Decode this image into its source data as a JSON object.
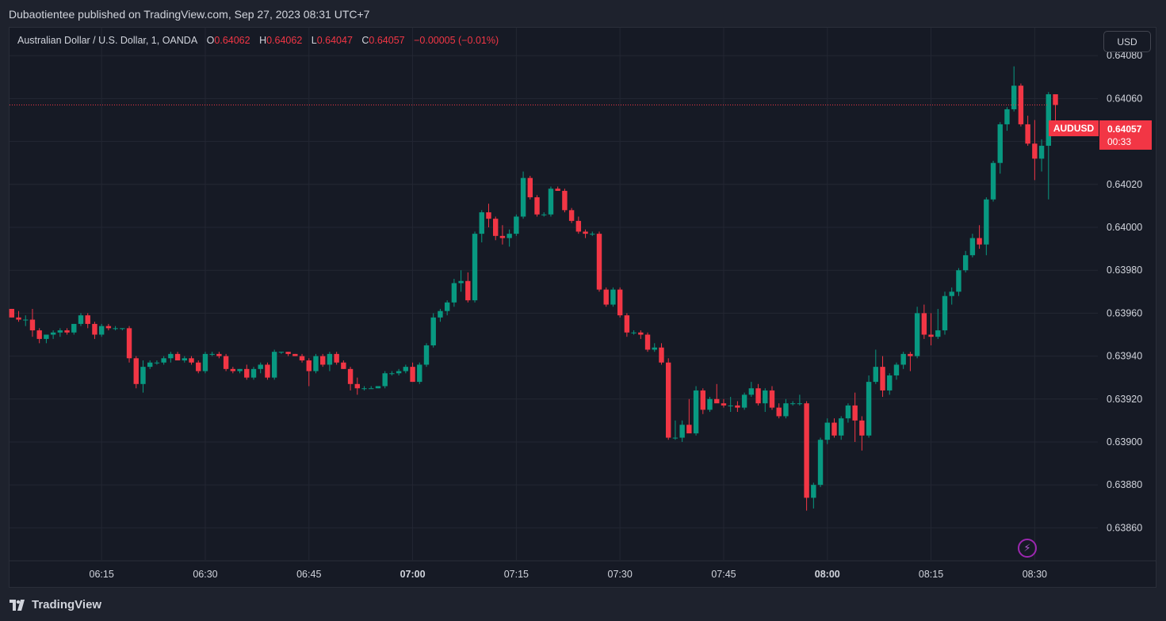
{
  "header": {
    "publisher": "Dubaotientee published on TradingView.com, Sep 27, 2023 08:31 UTC+7"
  },
  "legend": {
    "symbol_desc": "Australian Dollar / U.S. Dollar, 1, OANDA",
    "o_label": "O",
    "o_value": "0.64062",
    "h_label": "H",
    "h_value": "0.64062",
    "l_label": "L",
    "l_value": "0.64047",
    "c_label": "C",
    "c_value": "0.64057",
    "change": "−0.00005 (−0.01%)"
  },
  "currency_button": "USD",
  "last_price": {
    "symbol": "AUDUSD",
    "price": "0.64057",
    "countdown": "00:33"
  },
  "brand": "TradingView",
  "colors": {
    "up": "#089981",
    "down": "#f23645",
    "background": "#161a25",
    "grid": "#232733",
    "text": "#d1d4dc",
    "alert": "#9c27b0"
  },
  "icons": {
    "alert": "lightning-icon",
    "logo": "tradingview-logo-icon"
  },
  "chart_data": {
    "type": "candlestick",
    "ylim": [
      0.63845,
      0.64093
    ],
    "y_ticks": [
      "0.64080",
      "0.64060",
      "0.64040",
      "0.64020",
      "0.64000",
      "0.63980",
      "0.63960",
      "0.63940",
      "0.63920",
      "0.63900",
      "0.63880",
      "0.63860"
    ],
    "x_ticks": [
      {
        "label": "06:15",
        "t": 13,
        "bold": false
      },
      {
        "label": "06:30",
        "t": 28,
        "bold": false
      },
      {
        "label": "06:45",
        "t": 43,
        "bold": false
      },
      {
        "label": "07:00",
        "t": 58,
        "bold": true
      },
      {
        "label": "07:15",
        "t": 73,
        "bold": false
      },
      {
        "label": "07:30",
        "t": 88,
        "bold": false
      },
      {
        "label": "07:45",
        "t": 103,
        "bold": false
      },
      {
        "label": "08:00",
        "t": 118,
        "bold": true
      },
      {
        "label": "08:15",
        "t": 133,
        "bold": false
      },
      {
        "label": "08:30",
        "t": 148,
        "bold": false
      }
    ],
    "last_price": 0.64057,
    "candles": [
      [
        0.63962,
        0.63962,
        0.63958,
        0.63958
      ],
      [
        0.63958,
        0.63961,
        0.63956,
        0.63957
      ],
      [
        0.63957,
        0.63959,
        0.63954,
        0.63957
      ],
      [
        0.63957,
        0.63962,
        0.63949,
        0.63952
      ],
      [
        0.63952,
        0.63953,
        0.63946,
        0.63948
      ],
      [
        0.63948,
        0.6395,
        0.63946,
        0.6395
      ],
      [
        0.6395,
        0.63952,
        0.63948,
        0.63951
      ],
      [
        0.63951,
        0.63953,
        0.63949,
        0.63952
      ],
      [
        0.63952,
        0.63953,
        0.6395,
        0.63951
      ],
      [
        0.63951,
        0.63955,
        0.6395,
        0.63955
      ],
      [
        0.63955,
        0.6396,
        0.63954,
        0.63959
      ],
      [
        0.63959,
        0.6396,
        0.63953,
        0.63955
      ],
      [
        0.63955,
        0.63956,
        0.63948,
        0.6395
      ],
      [
        0.6395,
        0.63955,
        0.63949,
        0.63954
      ],
      [
        0.63954,
        0.63955,
        0.63952,
        0.63953
      ],
      [
        0.63953,
        0.63954,
        0.63952,
        0.63953
      ],
      [
        0.63953,
        0.63953,
        0.63952,
        0.63953
      ],
      [
        0.63953,
        0.63954,
        0.63937,
        0.63939
      ],
      [
        0.63939,
        0.6394,
        0.63925,
        0.63927
      ],
      [
        0.63927,
        0.63938,
        0.63923,
        0.63935
      ],
      [
        0.63935,
        0.63938,
        0.63934,
        0.63937
      ],
      [
        0.63937,
        0.63938,
        0.63936,
        0.63937
      ],
      [
        0.63937,
        0.6394,
        0.63936,
        0.63939
      ],
      [
        0.63939,
        0.63942,
        0.63937,
        0.63941
      ],
      [
        0.63941,
        0.63942,
        0.63938,
        0.63938
      ],
      [
        0.63938,
        0.6394,
        0.63937,
        0.63939
      ],
      [
        0.63939,
        0.6394,
        0.63936,
        0.63937
      ],
      [
        0.63937,
        0.63938,
        0.63932,
        0.63933
      ],
      [
        0.63933,
        0.63942,
        0.63932,
        0.63941
      ],
      [
        0.63941,
        0.63942,
        0.6394,
        0.63941
      ],
      [
        0.63941,
        0.63942,
        0.63939,
        0.6394
      ],
      [
        0.6394,
        0.63941,
        0.63933,
        0.63934
      ],
      [
        0.63934,
        0.63935,
        0.63932,
        0.63933
      ],
      [
        0.63933,
        0.63934,
        0.63932,
        0.63934
      ],
      [
        0.63934,
        0.63936,
        0.63929,
        0.6393
      ],
      [
        0.6393,
        0.63935,
        0.63929,
        0.63934
      ],
      [
        0.63934,
        0.63937,
        0.63932,
        0.63936
      ],
      [
        0.63936,
        0.63937,
        0.63929,
        0.6393
      ],
      [
        0.6393,
        0.63943,
        0.63929,
        0.63942
      ],
      [
        0.63942,
        0.63942,
        0.63941,
        0.63942
      ],
      [
        0.63942,
        0.63942,
        0.6394,
        0.63941
      ],
      [
        0.63941,
        0.63941,
        0.6394,
        0.6394
      ],
      [
        0.6394,
        0.63941,
        0.63937,
        0.63938
      ],
      [
        0.63938,
        0.63939,
        0.63926,
        0.63933
      ],
      [
        0.63933,
        0.63941,
        0.63932,
        0.6394
      ],
      [
        0.6394,
        0.63941,
        0.63935,
        0.63936
      ],
      [
        0.63936,
        0.63942,
        0.63933,
        0.63941
      ],
      [
        0.63941,
        0.63942,
        0.63936,
        0.63937
      ],
      [
        0.63937,
        0.63938,
        0.63934,
        0.63934
      ],
      [
        0.63934,
        0.63935,
        0.63924,
        0.63927
      ],
      [
        0.63927,
        0.6393,
        0.63922,
        0.63925
      ],
      [
        0.63925,
        0.63926,
        0.63924,
        0.63925
      ],
      [
        0.63925,
        0.63926,
        0.63925,
        0.63925
      ],
      [
        0.63925,
        0.63926,
        0.63925,
        0.63926
      ],
      [
        0.63926,
        0.63933,
        0.63925,
        0.63932
      ],
      [
        0.63932,
        0.63933,
        0.63931,
        0.63932
      ],
      [
        0.63932,
        0.63934,
        0.63931,
        0.63933
      ],
      [
        0.63933,
        0.63936,
        0.63932,
        0.63935
      ],
      [
        0.63935,
        0.63937,
        0.63928,
        0.63928
      ],
      [
        0.63928,
        0.63937,
        0.63927,
        0.63936
      ],
      [
        0.63936,
        0.63946,
        0.63935,
        0.63945
      ],
      [
        0.63945,
        0.6396,
        0.63944,
        0.63958
      ],
      [
        0.63958,
        0.63962,
        0.63956,
        0.63961
      ],
      [
        0.63961,
        0.63966,
        0.63959,
        0.63965
      ],
      [
        0.63965,
        0.63976,
        0.63963,
        0.63974
      ],
      [
        0.63974,
        0.6398,
        0.6397,
        0.63975
      ],
      [
        0.63975,
        0.63979,
        0.63965,
        0.63966
      ],
      [
        0.63966,
        0.63998,
        0.63965,
        0.63997
      ],
      [
        0.63997,
        0.64008,
        0.63993,
        0.64007
      ],
      [
        0.64007,
        0.64011,
        0.64,
        0.64004
      ],
      [
        0.64004,
        0.64005,
        0.63994,
        0.63996
      ],
      [
        0.63996,
        0.64001,
        0.63992,
        0.63995
      ],
      [
        0.63995,
        0.63999,
        0.63991,
        0.63997
      ],
      [
        0.63997,
        0.64006,
        0.63996,
        0.64005
      ],
      [
        0.64005,
        0.64026,
        0.64004,
        0.64023
      ],
      [
        0.64023,
        0.64024,
        0.64013,
        0.64014
      ],
      [
        0.64014,
        0.64015,
        0.64005,
        0.64006
      ],
      [
        0.64006,
        0.64007,
        0.64005,
        0.64006
      ],
      [
        0.64006,
        0.64019,
        0.64005,
        0.64018
      ],
      [
        0.64018,
        0.64019,
        0.64017,
        0.64017
      ],
      [
        0.64017,
        0.64018,
        0.64007,
        0.64008
      ],
      [
        0.64008,
        0.64009,
        0.64002,
        0.64003
      ],
      [
        0.64003,
        0.64005,
        0.63997,
        0.63998
      ],
      [
        0.63998,
        0.63999,
        0.63995,
        0.63997
      ],
      [
        0.63997,
        0.63998,
        0.63996,
        0.63997
      ],
      [
        0.63997,
        0.63998,
        0.6397,
        0.63971
      ],
      [
        0.63971,
        0.63972,
        0.63963,
        0.63964
      ],
      [
        0.63964,
        0.63972,
        0.63963,
        0.63971
      ],
      [
        0.63971,
        0.63972,
        0.63958,
        0.63959
      ],
      [
        0.63959,
        0.6396,
        0.63949,
        0.63951
      ],
      [
        0.63951,
        0.63952,
        0.6395,
        0.63951
      ],
      [
        0.63951,
        0.63952,
        0.63948,
        0.6395
      ],
      [
        0.6395,
        0.63951,
        0.63942,
        0.63943
      ],
      [
        0.63943,
        0.63946,
        0.63942,
        0.63944
      ],
      [
        0.63944,
        0.63946,
        0.63936,
        0.63937
      ],
      [
        0.63937,
        0.63939,
        0.63901,
        0.63902
      ],
      [
        0.63902,
        0.6391,
        0.63901,
        0.63902
      ],
      [
        0.63902,
        0.6391,
        0.639,
        0.63908
      ],
      [
        0.63908,
        0.6392,
        0.63906,
        0.63904
      ],
      [
        0.63904,
        0.63926,
        0.63903,
        0.63924
      ],
      [
        0.63924,
        0.63925,
        0.63913,
        0.63915
      ],
      [
        0.63915,
        0.63921,
        0.63914,
        0.6392
      ],
      [
        0.6392,
        0.63927,
        0.63919,
        0.63918
      ],
      [
        0.63918,
        0.6392,
        0.63916,
        0.63917
      ],
      [
        0.63917,
        0.63921,
        0.63914,
        0.63917
      ],
      [
        0.63917,
        0.63919,
        0.63914,
        0.63916
      ],
      [
        0.63916,
        0.63923,
        0.63915,
        0.63922
      ],
      [
        0.63922,
        0.63928,
        0.63921,
        0.63925
      ],
      [
        0.63925,
        0.63927,
        0.63917,
        0.63918
      ],
      [
        0.63918,
        0.63925,
        0.63914,
        0.63924
      ],
      [
        0.63924,
        0.63926,
        0.63915,
        0.63916
      ],
      [
        0.63916,
        0.63918,
        0.63911,
        0.63912
      ],
      [
        0.63912,
        0.6392,
        0.63911,
        0.63918
      ],
      [
        0.63918,
        0.63919,
        0.63917,
        0.63918
      ],
      [
        0.63918,
        0.63922,
        0.63917,
        0.63918
      ],
      [
        0.63918,
        0.63919,
        0.63868,
        0.63874
      ],
      [
        0.63874,
        0.63881,
        0.63869,
        0.6388
      ],
      [
        0.6388,
        0.63902,
        0.63879,
        0.63901
      ],
      [
        0.63901,
        0.63911,
        0.63899,
        0.63909
      ],
      [
        0.63909,
        0.63911,
        0.63902,
        0.63903
      ],
      [
        0.63903,
        0.63912,
        0.63901,
        0.63911
      ],
      [
        0.63911,
        0.63918,
        0.63909,
        0.63917
      ],
      [
        0.63917,
        0.63923,
        0.639,
        0.6391
      ],
      [
        0.6391,
        0.63912,
        0.63896,
        0.63903
      ],
      [
        0.63903,
        0.63931,
        0.63902,
        0.63928
      ],
      [
        0.63928,
        0.63943,
        0.63927,
        0.63935
      ],
      [
        0.63935,
        0.6394,
        0.63921,
        0.63924
      ],
      [
        0.63924,
        0.63932,
        0.63922,
        0.63931
      ],
      [
        0.63931,
        0.63937,
        0.63929,
        0.63936
      ],
      [
        0.63936,
        0.63942,
        0.63934,
        0.63941
      ],
      [
        0.63941,
        0.63942,
        0.63933,
        0.6394
      ],
      [
        0.6394,
        0.63963,
        0.63939,
        0.6396
      ],
      [
        0.6396,
        0.63964,
        0.63948,
        0.6395
      ],
      [
        0.6395,
        0.6396,
        0.63945,
        0.63949
      ],
      [
        0.63949,
        0.63962,
        0.63948,
        0.63952
      ],
      [
        0.63952,
        0.6397,
        0.6395,
        0.63968
      ],
      [
        0.63968,
        0.63972,
        0.63964,
        0.6397
      ],
      [
        0.6397,
        0.63981,
        0.63968,
        0.6398
      ],
      [
        0.6398,
        0.63989,
        0.63979,
        0.63987
      ],
      [
        0.63987,
        0.63997,
        0.63986,
        0.63995
      ],
      [
        0.63995,
        0.64001,
        0.6399,
        0.63992
      ],
      [
        0.63992,
        0.64014,
        0.63987,
        0.64013
      ],
      [
        0.64013,
        0.64031,
        0.64012,
        0.6403
      ],
      [
        0.6403,
        0.64049,
        0.64025,
        0.64048
      ],
      [
        0.64048,
        0.64056,
        0.64045,
        0.64055
      ],
      [
        0.64055,
        0.64075,
        0.64054,
        0.64066
      ],
      [
        0.64066,
        0.64067,
        0.64047,
        0.64048
      ],
      [
        0.64048,
        0.64052,
        0.64038,
        0.64039
      ],
      [
        0.64039,
        0.6405,
        0.64022,
        0.64032
      ],
      [
        0.64032,
        0.64041,
        0.64026,
        0.64038
      ],
      [
        0.64038,
        0.64063,
        0.64013,
        0.64062
      ],
      [
        0.64062,
        0.64062,
        0.64047,
        0.64057
      ]
    ]
  }
}
